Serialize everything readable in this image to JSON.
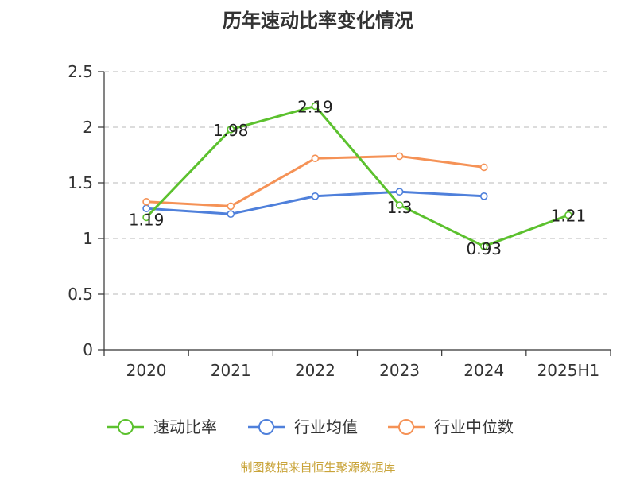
{
  "title": "历年速动比率变化情况",
  "source": "制图数据来自恒生聚源数据库",
  "chart_data": {
    "type": "line",
    "title": "历年速动比率变化情况",
    "categories": [
      "2020",
      "2021",
      "2022",
      "2023",
      "2024",
      "2025H1"
    ],
    "ylim": [
      0,
      2.5
    ],
    "yticks": [
      "0",
      "0.5",
      "1",
      "1.5",
      "2",
      "2.5"
    ],
    "yticks_values": [
      0,
      0.5,
      1,
      1.5,
      2,
      2.5
    ],
    "grid": true,
    "legend_position": "bottom",
    "series": [
      {
        "name": "速动比率",
        "color": "#5cc12e",
        "values": [
          1.19,
          1.98,
          2.19,
          1.3,
          0.93,
          1.21
        ],
        "labels": [
          "1.19",
          "1.98",
          "2.19",
          "1.3",
          "0.93",
          "1.21"
        ]
      },
      {
        "name": "行业均值",
        "color": "#4f80db",
        "values": [
          1.27,
          1.22,
          1.38,
          1.42,
          1.38,
          null
        ]
      },
      {
        "name": "行业中位数",
        "color": "#f59256",
        "values": [
          1.33,
          1.29,
          1.72,
          1.74,
          1.64,
          null
        ]
      }
    ]
  }
}
